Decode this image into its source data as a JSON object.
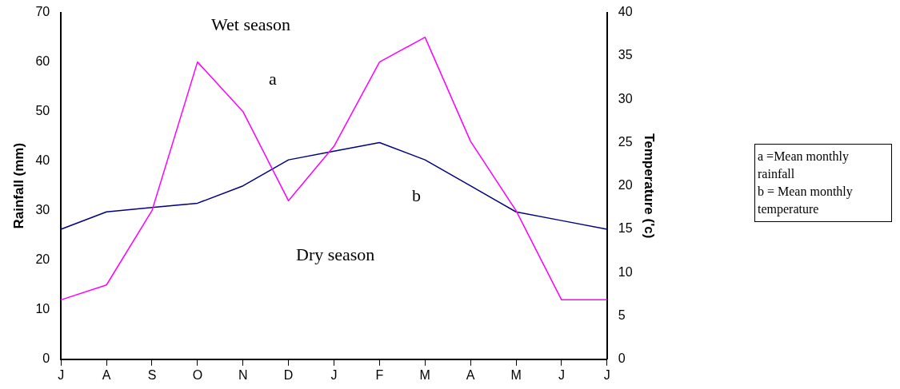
{
  "chart_data": {
    "type": "line",
    "ylabel": "Rainfall (mm)",
    "y2label": "Temperature ('c)",
    "categories": [
      "J",
      "A",
      "S",
      "O",
      "N",
      "D",
      "J",
      "F",
      "M",
      "A",
      "M",
      "J",
      "J"
    ],
    "series": [
      {
        "name": null,
        "color": "#ff00ff",
        "values": [
          12,
          15,
          30,
          60,
          50,
          32,
          43,
          60,
          65,
          44,
          30,
          12,
          12
        ]
      },
      {
        "name": null,
        "color": "#000080",
        "axis": "y2",
        "values": [
          15,
          17,
          17.5,
          18,
          20,
          23,
          24,
          25,
          23,
          20,
          17,
          16,
          15
        ]
      }
    ],
    "ylim": [
      0,
      70
    ],
    "yticks": [
      0,
      10,
      20,
      30,
      40,
      50,
      60,
      70
    ],
    "y2lim": [
      0,
      40
    ],
    "y2ticks": [
      0,
      5,
      10,
      15,
      20,
      25,
      30,
      35,
      40
    ],
    "grid": false,
    "legend": false,
    "marker": "none",
    "line_style": "solid",
    "annotations": [
      "Wet season",
      "a",
      "b",
      "Dry season",
      "a =Mean monthly rainfall",
      "b = Mean monthly temperature"
    ]
  }
}
